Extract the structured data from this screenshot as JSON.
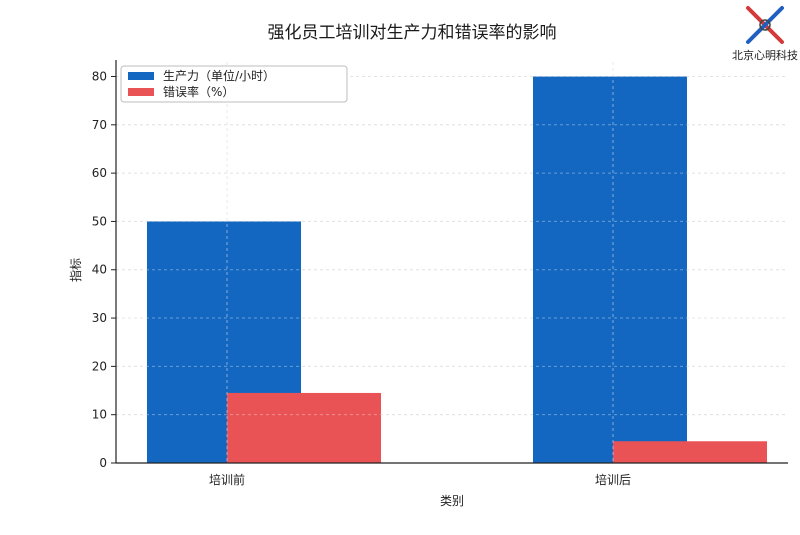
{
  "logo": {
    "text": "北京心明科技",
    "colors": [
      "#d43a3a",
      "#1f5fbf"
    ]
  },
  "chart_data": {
    "type": "bar",
    "title": "强化员工培训对生产力和错误率的影响",
    "xlabel": "类别",
    "ylabel": "指标",
    "categories": [
      "培训前",
      "培训后"
    ],
    "series": [
      {
        "name": "生产力（单位/小时）",
        "values": [
          50,
          80
        ],
        "color": "#1467c0"
      },
      {
        "name": "错误率（%）",
        "values": [
          14.5,
          4.5
        ],
        "color": "#ea5356"
      }
    ],
    "ylim": [
      0,
      83
    ],
    "yticks": [
      0,
      10,
      20,
      30,
      40,
      50,
      60,
      70,
      80
    ],
    "grid": true,
    "legend_position": "top-left"
  }
}
